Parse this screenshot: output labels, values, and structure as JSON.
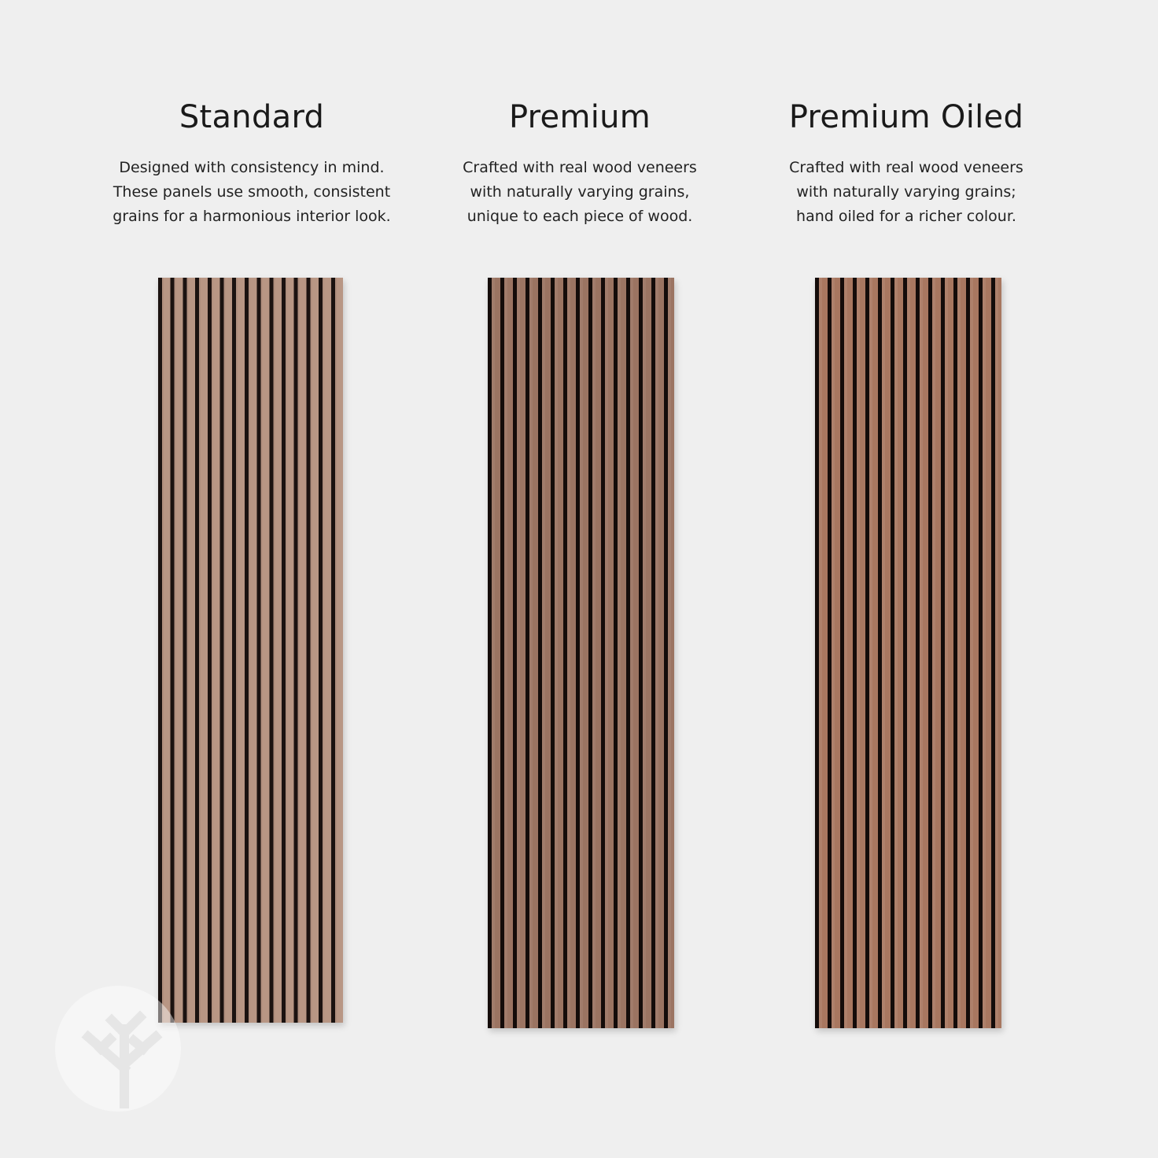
{
  "products": [
    {
      "title": "Standard",
      "desc_lines": [
        "Designed with consistency in mind.",
        "These panels use smooth, consistent",
        "grains for a harmonious interior look."
      ],
      "color": "#b89684"
    },
    {
      "title": "Premium",
      "desc_lines": [
        "Crafted with real wood veneers",
        "with naturally varying grains,",
        "unique to each piece of wood."
      ],
      "color": "#9b7462"
    },
    {
      "title": "Premium Oiled",
      "desc_lines": [
        "Crafted with real wood veneers",
        "with naturally varying grains;",
        "hand oiled for a richer colour."
      ],
      "color": "#a87760"
    }
  ],
  "logo": {
    "icon": "tree-branch-icon"
  }
}
